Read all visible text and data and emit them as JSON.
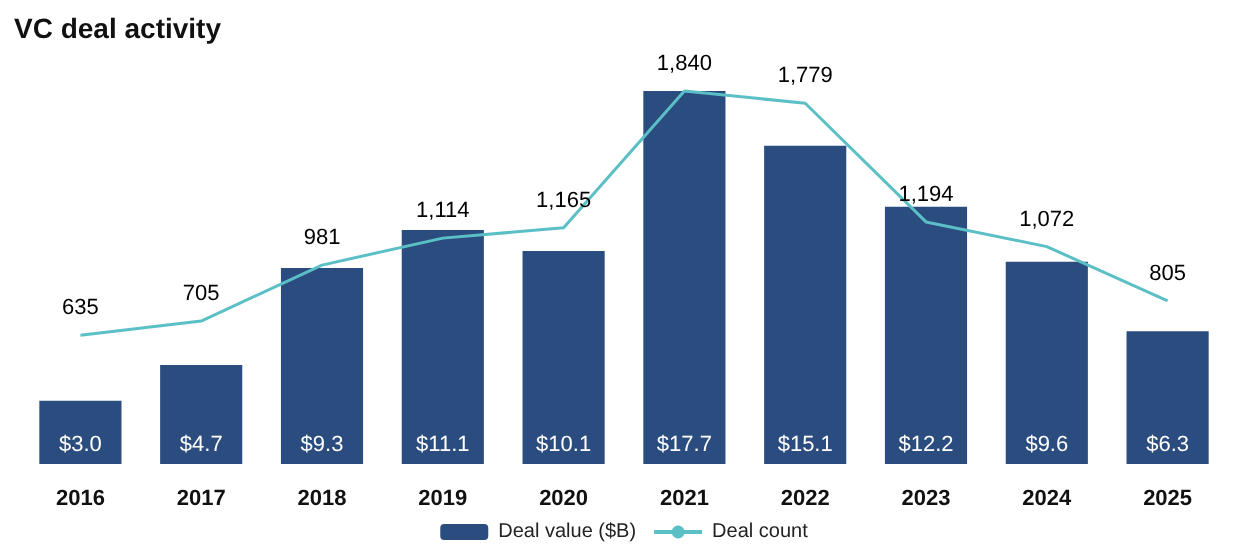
{
  "chart_data": {
    "type": "bar",
    "title": "VC deal activity",
    "categories": [
      "2016",
      "2017",
      "2018",
      "2019",
      "2020",
      "2021",
      "2022",
      "2023",
      "2024",
      "2025"
    ],
    "series": [
      {
        "name": "Deal value ($B)",
        "color": "#2b4c7e",
        "values": [
          3.0,
          4.7,
          9.3,
          11.1,
          10.1,
          17.7,
          15.1,
          12.2,
          9.6,
          6.3
        ],
        "value_labels": [
          "$3.0",
          "$4.7",
          "$9.3",
          "$11.1",
          "$10.1",
          "$17.7",
          "$15.1",
          "$12.2",
          "$9.6",
          "$6.3"
        ]
      },
      {
        "name": "Deal count",
        "type": "line",
        "axis": "y2",
        "color": "#5bbfc6",
        "values": [
          635,
          705,
          981,
          1114,
          1165,
          1840,
          1779,
          1194,
          1072,
          805
        ],
        "value_labels": [
          "635",
          "705",
          "981",
          "1,114",
          "1,165",
          "1,840",
          "1,779",
          "1,194",
          "1,072",
          "805"
        ]
      }
    ],
    "tick_labels": "x",
    "grid": false,
    "legend": "bottom",
    "marker": "none",
    "line_style": "solid"
  }
}
